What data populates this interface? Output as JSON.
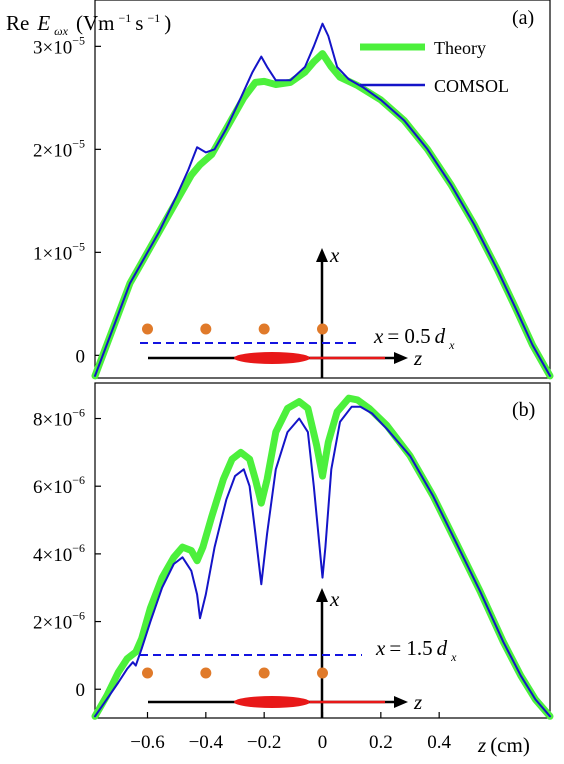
{
  "chart_data": [
    {
      "type": "line",
      "panel_label": "(a)",
      "ylabel_prefix": "Re",
      "ylabel_var": "E",
      "ylabel_sub": "ωx",
      "ylabel_units": "(Vm",
      "ylabel_units_exp1": "−1",
      "ylabel_units_mid": "s",
      "ylabel_units_exp2": "−1",
      "ylabel_units_end": ")",
      "xlim": [
        -0.78,
        0.78
      ],
      "ylim": [
        -2.2e-06,
        3.45e-05
      ],
      "y_ticks": [
        {
          "value": 0,
          "mantissa": "0",
          "exp": ""
        },
        {
          "value": 1e-05,
          "mantissa": "1×10",
          "exp": "−5"
        },
        {
          "value": 2e-05,
          "mantissa": "2×10",
          "exp": "−5"
        },
        {
          "value": 3e-05,
          "mantissa": "3×10",
          "exp": "−5"
        }
      ],
      "legend": [
        {
          "name": "Theory",
          "color": "#4cf03c"
        },
        {
          "name": "COMSOL",
          "color": "#1414c8"
        }
      ],
      "series": [
        {
          "name": "Theory",
          "color": "#4cf03c",
          "points": [
            [
              -0.78,
              -2e-06
            ],
            [
              -0.72,
              2.5e-06
            ],
            [
              -0.66,
              7e-06
            ],
            [
              -0.62,
              9e-06
            ],
            [
              -0.56,
              1.2e-05
            ],
            [
              -0.5,
              1.5e-05
            ],
            [
              -0.45,
              1.75e-05
            ],
            [
              -0.42,
              1.85e-05
            ],
            [
              -0.38,
              1.95e-05
            ],
            [
              -0.33,
              2.2e-05
            ],
            [
              -0.27,
              2.5e-05
            ],
            [
              -0.23,
              2.65e-05
            ],
            [
              -0.2,
              2.66e-05
            ],
            [
              -0.16,
              2.63e-05
            ],
            [
              -0.11,
              2.65e-05
            ],
            [
              -0.06,
              2.75e-05
            ],
            [
              -0.03,
              2.85e-05
            ],
            [
              0.0,
              2.93e-05
            ],
            [
              0.03,
              2.8e-05
            ],
            [
              0.06,
              2.7e-05
            ],
            [
              0.12,
              2.62e-05
            ],
            [
              0.2,
              2.48e-05
            ],
            [
              0.28,
              2.28e-05
            ],
            [
              0.36,
              2e-05
            ],
            [
              0.44,
              1.66e-05
            ],
            [
              0.52,
              1.27e-05
            ],
            [
              0.6,
              8.3e-06
            ],
            [
              0.66,
              4.7e-06
            ],
            [
              0.72,
              1e-06
            ],
            [
              0.78,
              -2e-06
            ]
          ]
        },
        {
          "name": "COMSOL",
          "color": "#1414c8",
          "points": [
            [
              -0.78,
              -2e-06
            ],
            [
              -0.72,
              2.5e-06
            ],
            [
              -0.66,
              7e-06
            ],
            [
              -0.62,
              9e-06
            ],
            [
              -0.56,
              1.2e-05
            ],
            [
              -0.5,
              1.55e-05
            ],
            [
              -0.46,
              1.8e-05
            ],
            [
              -0.43,
              2.02e-05
            ],
            [
              -0.4,
              1.97e-05
            ],
            [
              -0.37,
              2e-05
            ],
            [
              -0.33,
              2.2e-05
            ],
            [
              -0.28,
              2.5e-05
            ],
            [
              -0.24,
              2.75e-05
            ],
            [
              -0.21,
              2.9e-05
            ],
            [
              -0.19,
              2.8e-05
            ],
            [
              -0.16,
              2.67e-05
            ],
            [
              -0.11,
              2.67e-05
            ],
            [
              -0.06,
              2.8e-05
            ],
            [
              -0.03,
              3e-05
            ],
            [
              0.0,
              3.22e-05
            ],
            [
              0.02,
              3.1e-05
            ],
            [
              0.05,
              2.8e-05
            ],
            [
              0.09,
              2.68e-05
            ],
            [
              0.14,
              2.6e-05
            ],
            [
              0.2,
              2.48e-05
            ],
            [
              0.28,
              2.28e-05
            ],
            [
              0.36,
              2e-05
            ],
            [
              0.44,
              1.66e-05
            ],
            [
              0.52,
              1.27e-05
            ],
            [
              0.6,
              8.3e-06
            ],
            [
              0.66,
              4.7e-06
            ],
            [
              0.72,
              1e-06
            ],
            [
              0.78,
              -2e-06
            ]
          ]
        }
      ],
      "inset": {
        "axis_x": "x",
        "axis_z": "z",
        "line_label_var": "x",
        "line_label_eq": " = 0.5",
        "line_label_d": "d",
        "line_label_sub": "x",
        "dot_z": [
          -0.6,
          -0.4,
          -0.2,
          0.0
        ]
      }
    },
    {
      "type": "line",
      "panel_label": "(b)",
      "xlabel_var": "z",
      "xlabel_units": " (cm)",
      "xlim": [
        -0.78,
        0.78
      ],
      "ylim": [
        -8.5e-07,
        9.05e-06
      ],
      "x_ticks": [
        "−0.6",
        "−0.4",
        "−0.2",
        "0",
        "0.2",
        "0.4"
      ],
      "x_tick_values": [
        -0.6,
        -0.4,
        -0.2,
        0,
        0.2,
        0.4
      ],
      "y_ticks": [
        {
          "value": 0,
          "mantissa": "0",
          "exp": ""
        },
        {
          "value": 2e-06,
          "mantissa": "2×10",
          "exp": "−6"
        },
        {
          "value": 4e-06,
          "mantissa": "4×10",
          "exp": "−6"
        },
        {
          "value": 6e-06,
          "mantissa": "6×10",
          "exp": "−6"
        },
        {
          "value": 8e-06,
          "mantissa": "8×10",
          "exp": "−6"
        }
      ],
      "series": [
        {
          "name": "Theory",
          "color": "#4cf03c",
          "points": [
            [
              -0.78,
              -8e-07
            ],
            [
              -0.74,
              -2e-07
            ],
            [
              -0.7,
              5e-07
            ],
            [
              -0.67,
              9e-07
            ],
            [
              -0.64,
              1.1e-06
            ],
            [
              -0.62,
              1.5e-06
            ],
            [
              -0.59,
              2.4e-06
            ],
            [
              -0.55,
              3.3e-06
            ],
            [
              -0.51,
              3.9e-06
            ],
            [
              -0.48,
              4.2e-06
            ],
            [
              -0.45,
              4.1e-06
            ],
            [
              -0.43,
              3.8e-06
            ],
            [
              -0.41,
              4.2e-06
            ],
            [
              -0.38,
              5.1e-06
            ],
            [
              -0.34,
              6.2e-06
            ],
            [
              -0.31,
              6.8e-06
            ],
            [
              -0.28,
              7e-06
            ],
            [
              -0.25,
              6.8e-06
            ],
            [
              -0.23,
              6.2e-06
            ],
            [
              -0.21,
              5.5e-06
            ],
            [
              -0.19,
              6.2e-06
            ],
            [
              -0.16,
              7.6e-06
            ],
            [
              -0.12,
              8.3e-06
            ],
            [
              -0.08,
              8.5e-06
            ],
            [
              -0.05,
              8.3e-06
            ],
            [
              -0.02,
              7.2e-06
            ],
            [
              0.0,
              6.3e-06
            ],
            [
              0.02,
              7.3e-06
            ],
            [
              0.05,
              8.2e-06
            ],
            [
              0.09,
              8.6e-06
            ],
            [
              0.12,
              8.55e-06
            ],
            [
              0.16,
              8.3e-06
            ],
            [
              0.22,
              7.8e-06
            ],
            [
              0.3,
              6.9e-06
            ],
            [
              0.38,
              5.7e-06
            ],
            [
              0.46,
              4.3e-06
            ],
            [
              0.54,
              2.9e-06
            ],
            [
              0.62,
              1.4e-06
            ],
            [
              0.68,
              4e-07
            ],
            [
              0.73,
              -3e-07
            ],
            [
              0.78,
              -8e-07
            ]
          ]
        },
        {
          "name": "COMSOL",
          "color": "#1414c8",
          "points": [
            [
              -0.78,
              -8e-07
            ],
            [
              -0.74,
              -3e-07
            ],
            [
              -0.7,
              2e-07
            ],
            [
              -0.67,
              6e-07
            ],
            [
              -0.65,
              8e-07
            ],
            [
              -0.64,
              7e-07
            ],
            [
              -0.62,
              1.2e-06
            ],
            [
              -0.59,
              2e-06
            ],
            [
              -0.55,
              3e-06
            ],
            [
              -0.51,
              3.7e-06
            ],
            [
              -0.48,
              3.9e-06
            ],
            [
              -0.45,
              3.5e-06
            ],
            [
              -0.43,
              2.8e-06
            ],
            [
              -0.42,
              2.1e-06
            ],
            [
              -0.4,
              2.8e-06
            ],
            [
              -0.37,
              4.2e-06
            ],
            [
              -0.33,
              5.6e-06
            ],
            [
              -0.3,
              6.3e-06
            ],
            [
              -0.27,
              6.5e-06
            ],
            [
              -0.25,
              6e-06
            ],
            [
              -0.23,
              4.6e-06
            ],
            [
              -0.21,
              3.1e-06
            ],
            [
              -0.19,
              4.6e-06
            ],
            [
              -0.16,
              6.5e-06
            ],
            [
              -0.12,
              7.6e-06
            ],
            [
              -0.08,
              8e-06
            ],
            [
              -0.05,
              7.6e-06
            ],
            [
              -0.03,
              6e-06
            ],
            [
              -0.01,
              4.2e-06
            ],
            [
              0.0,
              3.3e-06
            ],
            [
              0.01,
              4.2e-06
            ],
            [
              0.03,
              6.5e-06
            ],
            [
              0.06,
              7.9e-06
            ],
            [
              0.1,
              8.35e-06
            ],
            [
              0.13,
              8.35e-06
            ],
            [
              0.17,
              8.15e-06
            ],
            [
              0.22,
              7.7e-06
            ],
            [
              0.3,
              6.9e-06
            ],
            [
              0.38,
              5.7e-06
            ],
            [
              0.46,
              4.3e-06
            ],
            [
              0.54,
              2.9e-06
            ],
            [
              0.62,
              1.4e-06
            ],
            [
              0.68,
              4e-07
            ],
            [
              0.73,
              -3e-07
            ],
            [
              0.78,
              -8e-07
            ]
          ]
        }
      ],
      "inset": {
        "axis_x": "x",
        "axis_z": "z",
        "line_label_var": "x",
        "line_label_eq": " = 1.5",
        "line_label_d": "d",
        "line_label_sub": "x",
        "dot_z": [
          -0.6,
          -0.4,
          -0.2,
          0.0
        ]
      }
    }
  ],
  "colors": {
    "dot": "#e07a2a",
    "beam": "#e81818",
    "dash_line": "#1414e0",
    "axis": "#000000"
  }
}
